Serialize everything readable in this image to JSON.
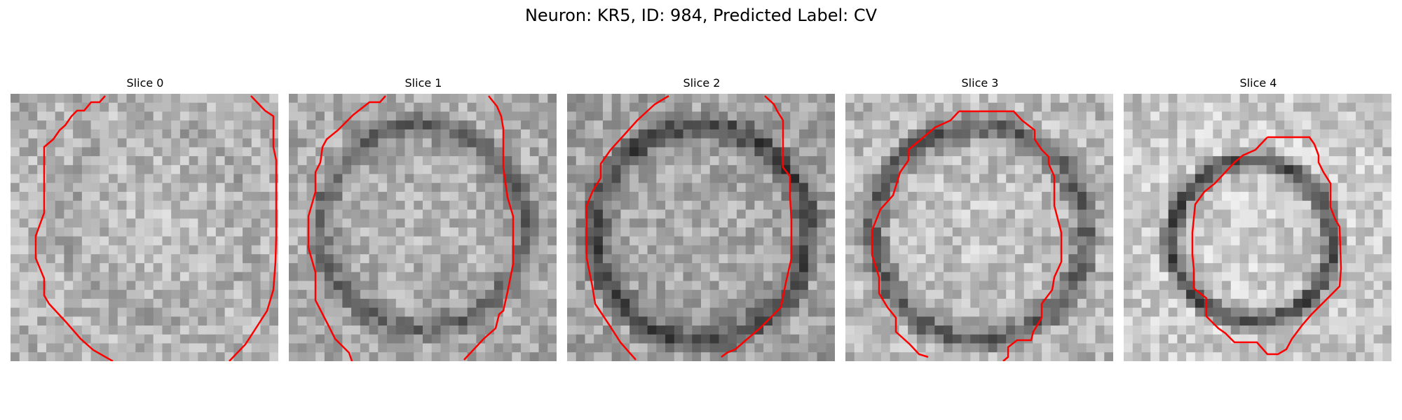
{
  "figure": {
    "title": "Neuron: KR5, ID: 984, Predicted Label: CV"
  },
  "panels": [
    {
      "title": "Slice 0"
    },
    {
      "title": "Slice 1"
    },
    {
      "title": "Slice 2"
    },
    {
      "title": "Slice 3"
    },
    {
      "title": "Slice 4"
    }
  ],
  "colors": {
    "contour": "#ff0000",
    "colormap": "grayscale"
  }
}
